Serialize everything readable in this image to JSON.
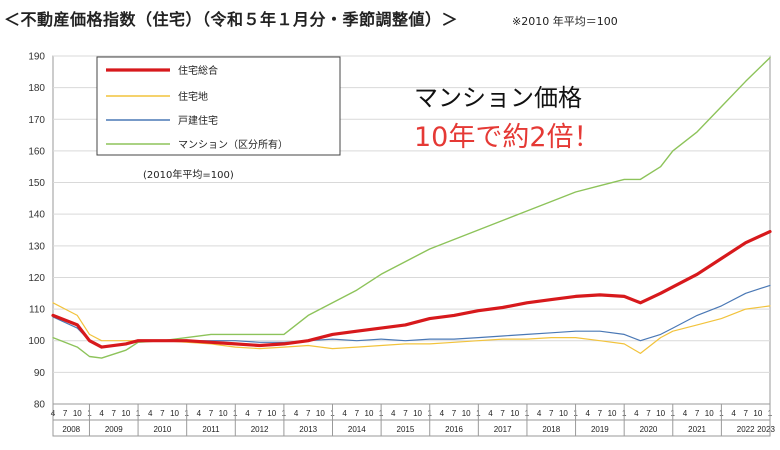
{
  "header": {
    "title": "＜不動産価格指数（住宅）（令和５年１月分・季節調整値）＞",
    "note": "※2010 年平均＝100"
  },
  "annotation": {
    "line1": "マンション価格",
    "line2": "10年で約2倍！"
  },
  "colors": {
    "total": "#d7191c",
    "land": "#f2c33c",
    "detached": "#4a78b5",
    "mansion": "#8dc35a"
  },
  "chart_data": {
    "type": "line",
    "ylim": [
      80,
      190
    ],
    "yticks": [
      80,
      90,
      100,
      110,
      120,
      130,
      140,
      150,
      160,
      170,
      180,
      190
    ],
    "grid": true,
    "legend_position": "top-left",
    "base_note": "(2010年平均=100)",
    "month_tick_labels": [
      "4",
      "7",
      "10",
      "1"
    ],
    "years": [
      "2008",
      "2009",
      "2010",
      "2011",
      "2012",
      "2013",
      "2014",
      "2015",
      "2016",
      "2017",
      "2018",
      "2019",
      "2020",
      "2021",
      "2022",
      "2023"
    ],
    "x_start": "2008-04",
    "x_end": "2023-01",
    "series": [
      {
        "name": "住宅総合",
        "color_key": "total",
        "width": 3.2,
        "points": [
          [
            "2008-04",
            108
          ],
          [
            "2008-10",
            105
          ],
          [
            "2009-01",
            100
          ],
          [
            "2009-04",
            98
          ],
          [
            "2009-10",
            99
          ],
          [
            "2010-01",
            100
          ],
          [
            "2010-07",
            100
          ],
          [
            "2011-01",
            100
          ],
          [
            "2011-07",
            99.5
          ],
          [
            "2012-01",
            99
          ],
          [
            "2012-07",
            98.5
          ],
          [
            "2013-01",
            99
          ],
          [
            "2013-07",
            100
          ],
          [
            "2014-01",
            102
          ],
          [
            "2014-07",
            103
          ],
          [
            "2015-01",
            104
          ],
          [
            "2015-07",
            105
          ],
          [
            "2016-01",
            107
          ],
          [
            "2016-07",
            108
          ],
          [
            "2017-01",
            109.5
          ],
          [
            "2017-07",
            110.5
          ],
          [
            "2018-01",
            112
          ],
          [
            "2018-07",
            113
          ],
          [
            "2019-01",
            114
          ],
          [
            "2019-07",
            114.5
          ],
          [
            "2020-01",
            114
          ],
          [
            "2020-05",
            112
          ],
          [
            "2020-10",
            115
          ],
          [
            "2021-01",
            117
          ],
          [
            "2021-07",
            121
          ],
          [
            "2022-01",
            126
          ],
          [
            "2022-07",
            131
          ],
          [
            "2023-01",
            134.5
          ]
        ]
      },
      {
        "name": "住宅地",
        "color_key": "land",
        "width": 1.2,
        "points": [
          [
            "2008-04",
            112
          ],
          [
            "2008-10",
            108
          ],
          [
            "2009-01",
            102
          ],
          [
            "2009-04",
            100
          ],
          [
            "2009-10",
            100
          ],
          [
            "2010-01",
            100
          ],
          [
            "2010-07",
            100
          ],
          [
            "2011-01",
            99.5
          ],
          [
            "2011-07",
            99
          ],
          [
            "2012-01",
            98
          ],
          [
            "2012-07",
            97.5
          ],
          [
            "2013-01",
            98
          ],
          [
            "2013-07",
            98.5
          ],
          [
            "2014-01",
            97.5
          ],
          [
            "2014-07",
            98
          ],
          [
            "2015-01",
            98.5
          ],
          [
            "2015-07",
            99
          ],
          [
            "2016-01",
            99
          ],
          [
            "2016-07",
            99.5
          ],
          [
            "2017-01",
            100
          ],
          [
            "2017-07",
            100.5
          ],
          [
            "2018-01",
            100.5
          ],
          [
            "2018-07",
            101
          ],
          [
            "2019-01",
            101
          ],
          [
            "2019-07",
            100
          ],
          [
            "2020-01",
            99
          ],
          [
            "2020-05",
            96
          ],
          [
            "2020-10",
            101
          ],
          [
            "2021-01",
            103
          ],
          [
            "2021-07",
            105
          ],
          [
            "2022-01",
            107
          ],
          [
            "2022-07",
            110
          ],
          [
            "2023-01",
            111
          ]
        ]
      },
      {
        "name": "戸建住宅",
        "color_key": "detached",
        "width": 1.2,
        "points": [
          [
            "2008-04",
            107.5
          ],
          [
            "2008-10",
            104
          ],
          [
            "2009-01",
            100
          ],
          [
            "2009-04",
            98
          ],
          [
            "2009-10",
            99
          ],
          [
            "2010-01",
            100
          ],
          [
            "2010-07",
            100
          ],
          [
            "2011-01",
            100
          ],
          [
            "2011-07",
            100
          ],
          [
            "2012-01",
            100
          ],
          [
            "2012-07",
            99.5
          ],
          [
            "2013-01",
            99.5
          ],
          [
            "2013-07",
            100
          ],
          [
            "2014-01",
            100.5
          ],
          [
            "2014-07",
            100
          ],
          [
            "2015-01",
            100.5
          ],
          [
            "2015-07",
            100
          ],
          [
            "2016-01",
            100.5
          ],
          [
            "2016-07",
            100.5
          ],
          [
            "2017-01",
            101
          ],
          [
            "2017-07",
            101.5
          ],
          [
            "2018-01",
            102
          ],
          [
            "2018-07",
            102.5
          ],
          [
            "2019-01",
            103
          ],
          [
            "2019-07",
            103
          ],
          [
            "2020-01",
            102
          ],
          [
            "2020-05",
            100
          ],
          [
            "2020-10",
            102
          ],
          [
            "2021-01",
            104
          ],
          [
            "2021-07",
            108
          ],
          [
            "2022-01",
            111
          ],
          [
            "2022-07",
            115
          ],
          [
            "2023-01",
            117.5
          ]
        ]
      },
      {
        "name": "マンション（区分所有）",
        "color_key": "mansion",
        "width": 1.4,
        "points": [
          [
            "2008-04",
            101
          ],
          [
            "2008-10",
            98
          ],
          [
            "2009-01",
            95
          ],
          [
            "2009-04",
            94.5
          ],
          [
            "2009-10",
            97
          ],
          [
            "2010-01",
            99.5
          ],
          [
            "2010-07",
            100
          ],
          [
            "2011-01",
            101
          ],
          [
            "2011-07",
            102
          ],
          [
            "2012-01",
            102
          ],
          [
            "2012-07",
            102
          ],
          [
            "2013-01",
            102
          ],
          [
            "2013-07",
            108
          ],
          [
            "2014-01",
            112
          ],
          [
            "2014-07",
            116
          ],
          [
            "2015-01",
            121
          ],
          [
            "2015-07",
            125
          ],
          [
            "2016-01",
            129
          ],
          [
            "2016-07",
            132
          ],
          [
            "2017-01",
            135
          ],
          [
            "2017-07",
            138
          ],
          [
            "2018-01",
            141
          ],
          [
            "2018-07",
            144
          ],
          [
            "2019-01",
            147
          ],
          [
            "2019-07",
            149
          ],
          [
            "2020-01",
            151
          ],
          [
            "2020-05",
            151
          ],
          [
            "2020-10",
            155
          ],
          [
            "2021-01",
            160
          ],
          [
            "2021-07",
            166
          ],
          [
            "2022-01",
            174
          ],
          [
            "2022-07",
            182
          ],
          [
            "2023-01",
            189.5
          ]
        ]
      }
    ]
  }
}
